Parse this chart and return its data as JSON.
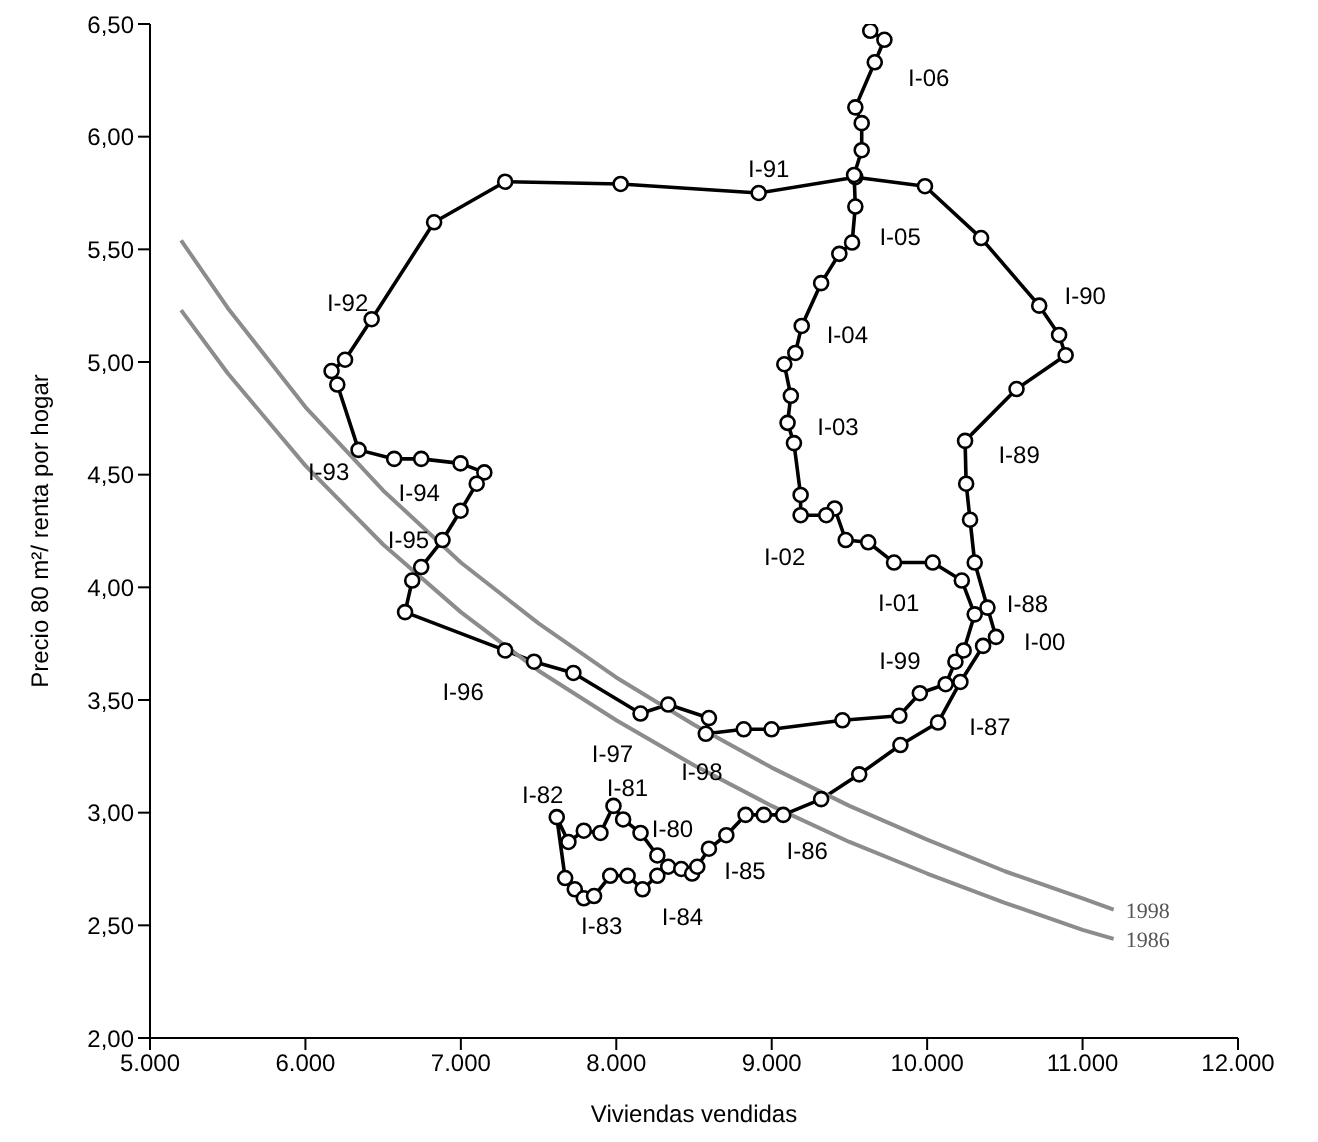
{
  "chart_data": {
    "type": "line",
    "xlabel": "Viviendas vendidas",
    "ylabel": "Precio 80 m²/ renta por hogar",
    "xlim": [
      5000,
      12000
    ],
    "ylim": [
      2,
      6.5
    ],
    "xticks": [
      {
        "value": 5000,
        "label": "5.000"
      },
      {
        "value": 6000,
        "label": "6.000"
      },
      {
        "value": 7000,
        "label": "7.000"
      },
      {
        "value": 8000,
        "label": "8.000"
      },
      {
        "value": 9000,
        "label": "9.000"
      },
      {
        "value": 10000,
        "label": "10.000"
      },
      {
        "value": 11000,
        "label": "11.000"
      },
      {
        "value": 12000,
        "label": "12.000"
      }
    ],
    "yticks": [
      {
        "value": 2,
        "label": "2,00"
      },
      {
        "value": 2.5,
        "label": "2,50"
      },
      {
        "value": 3,
        "label": "3,00"
      },
      {
        "value": 3.5,
        "label": "3,50"
      },
      {
        "value": 4,
        "label": "4,00"
      },
      {
        "value": 4.5,
        "label": "4,50"
      },
      {
        "value": 5,
        "label": "5,00"
      },
      {
        "value": 5.5,
        "label": "5,50"
      },
      {
        "value": 6,
        "label": "6,00"
      },
      {
        "value": 6.5,
        "label": "6,50"
      }
    ],
    "grid": false,
    "legend": false,
    "line_style": "solid",
    "series": [
      {
        "color": "#000000",
        "marker": "circle",
        "x": [
          8264,
          8156,
          8044,
          7982,
          7898,
          7791,
          7692,
          7617,
          7671,
          7733,
          7791,
          7857,
          7961,
          8073,
          8169,
          8264,
          8334,
          8418,
          8488,
          8521,
          8596,
          8708,
          8832,
          8949,
          9074,
          9318,
          9563,
          9828,
          10070,
          10214,
          10360,
          10443,
          10388,
          10306,
          10276,
          10251,
          10244,
          10575,
          10891,
          10849,
          10721,
          10347,
          9986,
          9538,
          8916,
          8028,
          7285,
          6828,
          6426,
          6255,
          6168,
          6205,
          6342,
          6571,
          6745,
          6998,
          7151,
          7102,
          6998,
          6882,
          6745,
          6687,
          6641,
          7285,
          7471,
          7724,
          8156,
          8334,
          8596,
          8576,
          8820,
          8999,
          9455,
          9821,
          9953,
          10119,
          10182,
          10235,
          10306,
          10223,
          10036,
          9787,
          9621,
          9476,
          9405,
          9351,
          9186,
          9186,
          9143,
          9102,
          9123,
          9081,
          9152,
          9193,
          9318,
          9435,
          9517,
          9538,
          9530,
          9579,
          9579,
          9538,
          9663,
          9725,
          9634
        ],
        "values": [
          2.81,
          2.91,
          2.97,
          3.03,
          2.91,
          2.92,
          2.87,
          2.98,
          2.71,
          2.66,
          2.62,
          2.63,
          2.72,
          2.72,
          2.66,
          2.72,
          2.76,
          2.75,
          2.73,
          2.76,
          2.84,
          2.9,
          2.99,
          2.99,
          2.99,
          3.06,
          3.17,
          3.3,
          3.4,
          3.58,
          3.74,
          3.78,
          3.91,
          4.11,
          4.3,
          4.46,
          4.65,
          4.88,
          5.03,
          5.12,
          5.25,
          5.55,
          5.78,
          5.82,
          5.75,
          5.79,
          5.8,
          5.62,
          5.19,
          5.01,
          4.96,
          4.9,
          4.61,
          4.57,
          4.57,
          4.55,
          4.51,
          4.46,
          4.34,
          4.21,
          4.09,
          4.03,
          3.89,
          3.72,
          3.67,
          3.62,
          3.44,
          3.48,
          3.42,
          3.35,
          3.37,
          3.37,
          3.41,
          3.43,
          3.53,
          3.57,
          3.67,
          3.72,
          3.88,
          4.03,
          4.11,
          4.11,
          4.2,
          4.21,
          4.35,
          4.32,
          4.32,
          4.41,
          4.64,
          4.73,
          4.85,
          4.99,
          5.04,
          5.16,
          5.35,
          5.48,
          5.53,
          5.69,
          5.83,
          5.94,
          6.06,
          6.13,
          6.33,
          6.43,
          6.47
        ]
      },
      {
        "name": "1998",
        "color": "#8c8c8c",
        "marker": "none",
        "x": [
          5200,
          5500,
          6000,
          6500,
          7000,
          7500,
          8000,
          8500,
          9000,
          9500,
          10000,
          10500,
          11000,
          11200
        ],
        "values": [
          5.54,
          5.24,
          4.8,
          4.43,
          4.11,
          3.84,
          3.6,
          3.39,
          3.2,
          3.03,
          2.88,
          2.74,
          2.62,
          2.57
        ]
      },
      {
        "name": "1986",
        "color": "#8c8c8c",
        "marker": "none",
        "x": [
          5200,
          5500,
          6000,
          6500,
          7000,
          7500,
          8000,
          8500,
          9000,
          9500,
          10000,
          10500,
          11000,
          11200
        ],
        "values": [
          5.23,
          4.95,
          4.54,
          4.19,
          3.89,
          3.63,
          3.41,
          3.21,
          3.03,
          2.87,
          2.73,
          2.6,
          2.48,
          2.44
        ]
      }
    ],
    "annotations": [
      {
        "text": "I-80",
        "x": 8156,
        "y": 2.91
      },
      {
        "text": "I-81",
        "x": 7982,
        "y": 3.03
      },
      {
        "text": "I-82",
        "x": 7617,
        "y": 2.98
      },
      {
        "text": "I-83",
        "x": 7791,
        "y": 2.62
      },
      {
        "text": "I-84",
        "x": 8169,
        "y": 2.66
      },
      {
        "text": "I-85",
        "x": 8596,
        "y": 2.84
      },
      {
        "text": "I-86",
        "x": 9074,
        "y": 2.99
      },
      {
        "text": "I-87",
        "x": 10070,
        "y": 3.4
      },
      {
        "text": "I-88",
        "x": 10388,
        "y": 3.91
      },
      {
        "text": "I-89",
        "x": 10244,
        "y": 4.65
      },
      {
        "text": "I-90",
        "x": 10721,
        "y": 5.25
      },
      {
        "text": "I-91",
        "x": 8916,
        "y": 5.75
      },
      {
        "text": "I-92",
        "x": 6426,
        "y": 5.19
      },
      {
        "text": "I-93",
        "x": 6342,
        "y": 4.61
      },
      {
        "text": "I-94",
        "x": 6745,
        "y": 4.57
      },
      {
        "text": "I-95",
        "x": 6882,
        "y": 4.21
      },
      {
        "text": "I-96",
        "x": 7285,
        "y": 3.72
      },
      {
        "text": "I-97",
        "x": 8156,
        "y": 3.44
      },
      {
        "text": "I-98",
        "x": 8576,
        "y": 3.35
      },
      {
        "text": "I-99",
        "x": 9953,
        "y": 3.53
      },
      {
        "text": "I-00",
        "x": 10306,
        "y": 3.88
      },
      {
        "text": "I-01",
        "x": 10036,
        "y": 4.11
      },
      {
        "text": "I-02",
        "x": 9186,
        "y": 4.32
      },
      {
        "text": "I-03",
        "x": 9143,
        "y": 4.64
      },
      {
        "text": "I-04",
        "x": 9152,
        "y": 5.04
      },
      {
        "text": "I-05",
        "x": 9517,
        "y": 5.53
      },
      {
        "text": "I-06",
        "x": 9663,
        "y": 6.33
      }
    ]
  }
}
